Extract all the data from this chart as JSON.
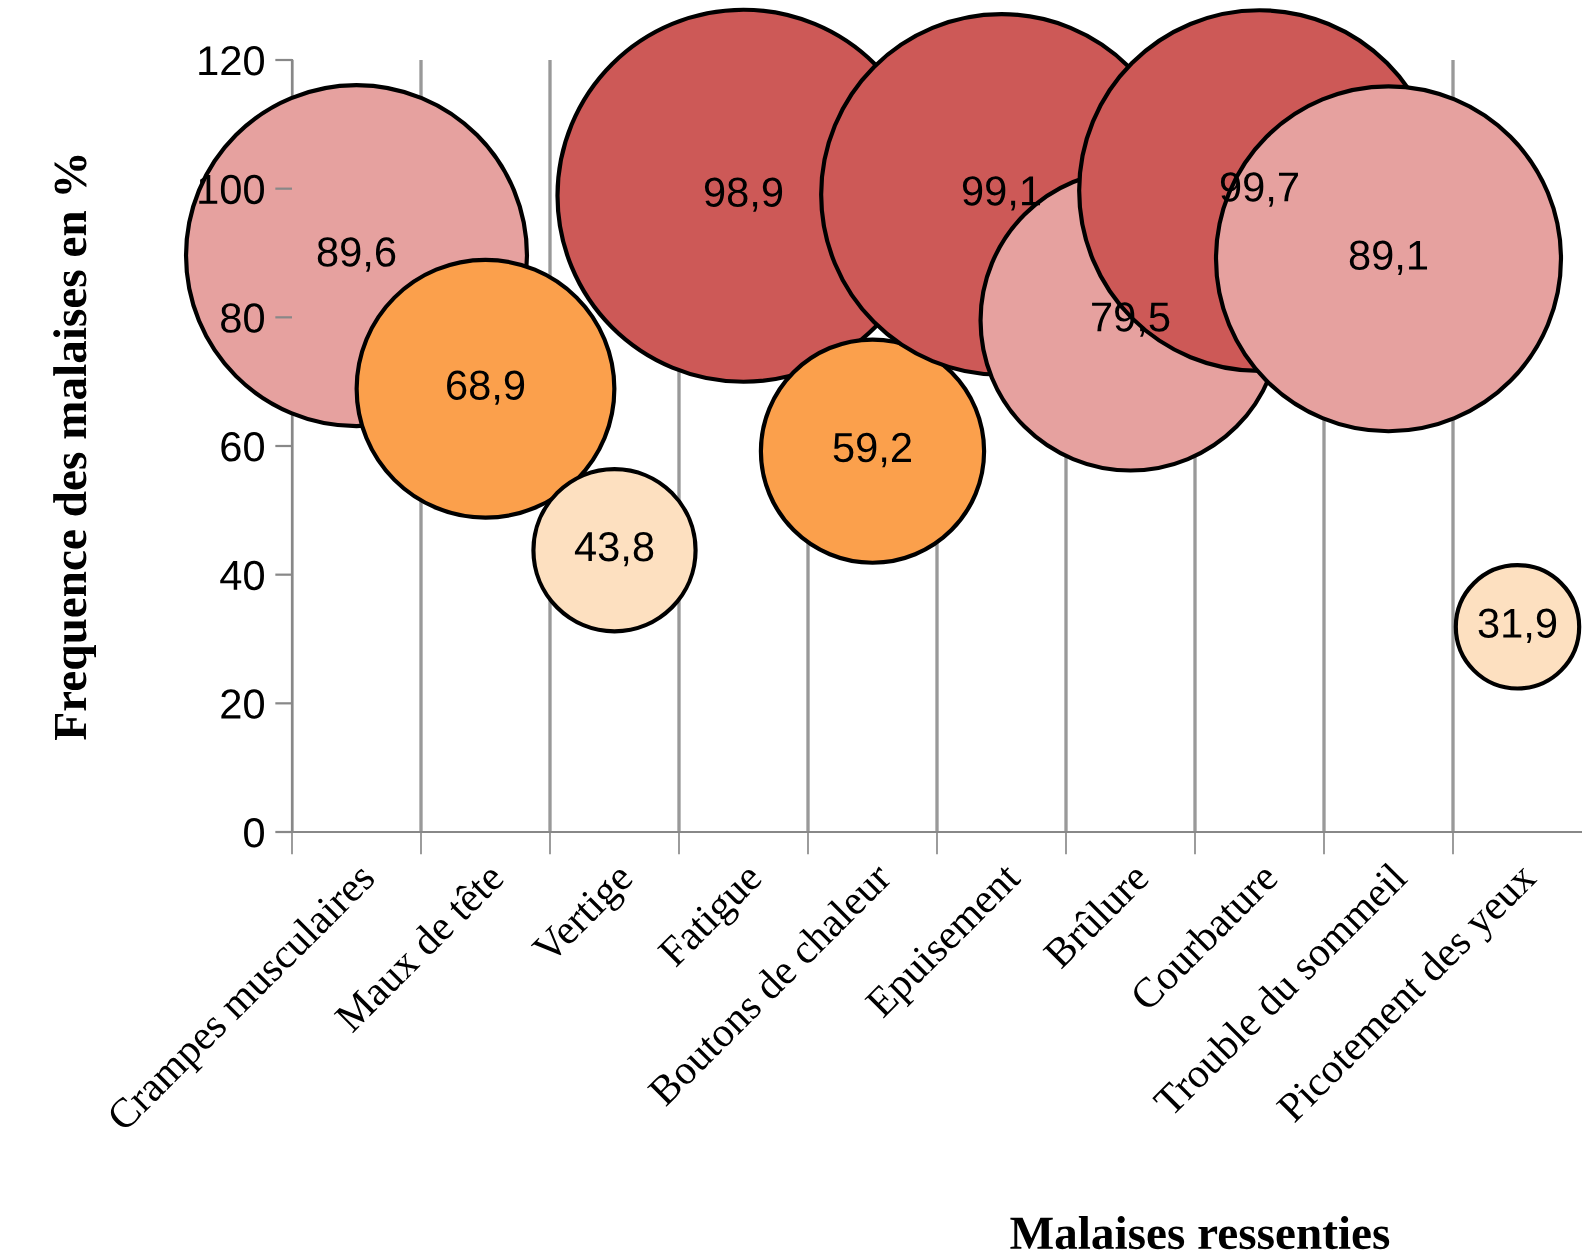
{
  "chart_data": {
    "type": "bubble",
    "xlabel": "Malaises ressenties",
    "ylabel": "Frequence des malaises en %",
    "categories": [
      "Crampes musculaires",
      "Maux de tête",
      "Vertige",
      "Fatigue",
      "Boutons de chaleur",
      "Epuisement",
      "Brûlure",
      "Courbature",
      "Trouble du sommeil",
      "Picotement des yeux"
    ],
    "values": [
      89.6,
      68.9,
      43.8,
      98.9,
      59.2,
      99.1,
      79.5,
      99.7,
      89.1,
      31.9
    ],
    "sizes": [
      0.84,
      0.48,
      0.19,
      1,
      0.36,
      0.94,
      0.65,
      0.94,
      0.86,
      0.11
    ],
    "colors": [
      "#e6a19f",
      "#fba04c",
      "#fde0c0",
      "#cd5957",
      "#fba04c",
      "#cd5957",
      "#e6a19f",
      "#cd5957",
      "#e6a19f",
      "#fde0c0"
    ],
    "value_labels": [
      "89,6",
      "68,9",
      "43,8",
      "98,9",
      "59,2",
      "99,1",
      "79,5",
      "99,7",
      "89,1",
      "31,9"
    ],
    "ylim": [
      0,
      120
    ],
    "yticks": [
      0,
      20,
      40,
      60,
      80,
      100,
      120
    ],
    "grid": "x"
  }
}
